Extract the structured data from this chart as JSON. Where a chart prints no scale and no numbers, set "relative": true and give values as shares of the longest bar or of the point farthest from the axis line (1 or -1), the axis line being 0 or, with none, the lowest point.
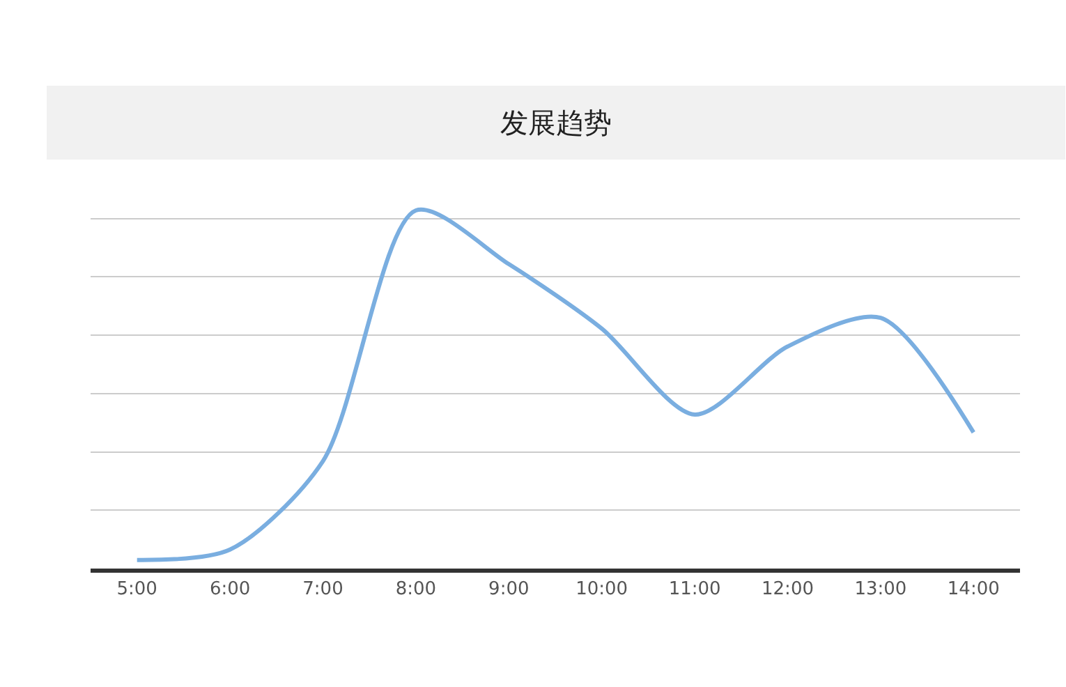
{
  "chart_data": {
    "type": "line",
    "title": "发展趋势",
    "relative": true,
    "categories": [
      "5:00",
      "6:00",
      "7:00",
      "8:00",
      "9:00",
      "10:00",
      "11:00",
      "12:00",
      "13:00",
      "14:00"
    ],
    "series": [
      {
        "color": "#7aaee0",
        "values": [
          0.024,
          0.053,
          0.3,
          1,
          0.85,
          0.67,
          0.43,
          0.62,
          0.7,
          0.38
        ]
      }
    ],
    "grid": "y",
    "marker": "none",
    "line_style": "solid"
  }
}
